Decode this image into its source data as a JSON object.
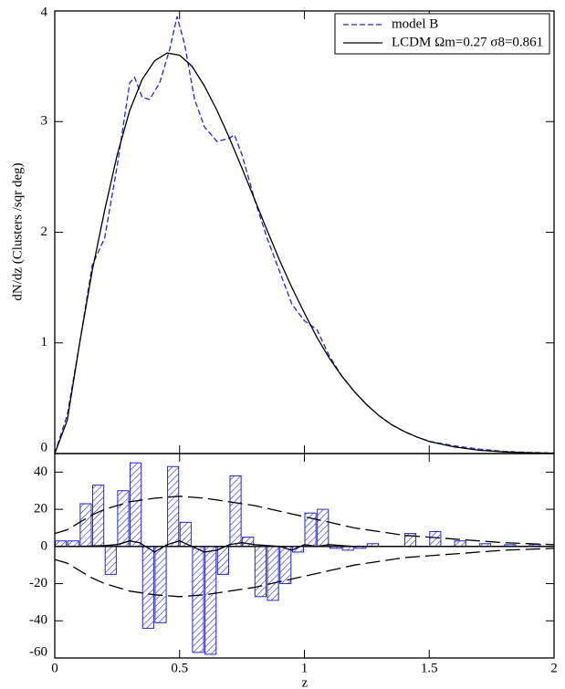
{
  "chart_data": [
    {
      "type": "line",
      "ylabel": "dN/dz (Clusters /sqr deg)",
      "xlim": [
        0,
        2
      ],
      "xticks": [
        0,
        0.5,
        1,
        1.5,
        2
      ],
      "ylim": [
        0,
        4
      ],
      "yticks": [
        0,
        1,
        2,
        3,
        4
      ],
      "legend": "upper right",
      "series": [
        {
          "name": "model B",
          "color": "#2626d0",
          "dash": true,
          "x": [
            0,
            0.05,
            0.1,
            0.15,
            0.2,
            0.25,
            0.3,
            0.32,
            0.35,
            0.38,
            0.42,
            0.46,
            0.49,
            0.52,
            0.56,
            0.6,
            0.65,
            0.7,
            0.72,
            0.75,
            0.8,
            0.85,
            0.9,
            0.95,
            1.0,
            1.05,
            1.1,
            1.15,
            1.2,
            1.25,
            1.3,
            1.35,
            1.4,
            1.45,
            1.5,
            1.6,
            1.7,
            1.8,
            1.9,
            2.0
          ],
          "values": [
            0,
            0.35,
            1.0,
            1.7,
            1.95,
            2.6,
            3.35,
            3.4,
            3.22,
            3.2,
            3.35,
            3.65,
            3.95,
            3.7,
            3.2,
            2.95,
            2.82,
            2.85,
            2.88,
            2.7,
            2.3,
            1.95,
            1.65,
            1.35,
            1.2,
            1.12,
            0.88,
            0.7,
            0.56,
            0.44,
            0.34,
            0.26,
            0.2,
            0.15,
            0.11,
            0.07,
            0.04,
            0.02,
            0.01,
            0.005
          ]
        },
        {
          "name": "LCDM Ωm=0.27 σ8=0.861",
          "color": "#000000",
          "dash": false,
          "x": [
            0,
            0.05,
            0.1,
            0.15,
            0.2,
            0.25,
            0.3,
            0.35,
            0.4,
            0.45,
            0.5,
            0.55,
            0.6,
            0.65,
            0.7,
            0.75,
            0.8,
            0.85,
            0.9,
            0.95,
            1.0,
            1.05,
            1.1,
            1.15,
            1.2,
            1.25,
            1.3,
            1.35,
            1.4,
            1.45,
            1.5,
            1.6,
            1.7,
            1.8,
            1.9,
            2.0
          ],
          "values": [
            0,
            0.3,
            1.0,
            1.65,
            2.2,
            2.7,
            3.1,
            3.38,
            3.55,
            3.62,
            3.6,
            3.5,
            3.32,
            3.1,
            2.85,
            2.58,
            2.3,
            2.02,
            1.75,
            1.5,
            1.27,
            1.05,
            0.86,
            0.7,
            0.56,
            0.44,
            0.34,
            0.26,
            0.2,
            0.15,
            0.11,
            0.06,
            0.03,
            0.015,
            0.007,
            0.003
          ]
        }
      ]
    },
    {
      "type": "histogram",
      "xlabel": "z",
      "xlim": [
        0,
        2
      ],
      "xticks": [
        0,
        0.5,
        1,
        1.5,
        2
      ],
      "ylim": [
        -60,
        50
      ],
      "yticks": [
        -60,
        -40,
        -20,
        0,
        20,
        40
      ],
      "color": "#2626d0",
      "bins": [
        0,
        0.05,
        0.1,
        0.15,
        0.2,
        0.25,
        0.3,
        0.35,
        0.4,
        0.45,
        0.5,
        0.55,
        0.6,
        0.65,
        0.7,
        0.75,
        0.8,
        0.85,
        0.9,
        0.95,
        1.0,
        1.05,
        1.1,
        1.15,
        1.2,
        1.25,
        1.3,
        1.35,
        1.4,
        1.45,
        1.5,
        1.55,
        1.6,
        1.65,
        1.7,
        1.75,
        1.8,
        1.85,
        1.9,
        1.95,
        2.0
      ],
      "counts": [
        3,
        3,
        23,
        33,
        -15,
        30,
        45,
        -44,
        -41,
        43,
        13,
        -57,
        -58,
        -15,
        38,
        5,
        -27,
        -29,
        -20,
        -3,
        18,
        20,
        -1,
        -2,
        -1,
        1.5,
        0,
        0,
        7,
        0,
        8,
        0,
        3,
        0,
        1.5,
        0,
        1,
        0,
        1,
        0
      ],
      "lines": [
        {
          "color": "#000000",
          "dash": true,
          "x": [
            0,
            0.05,
            0.1,
            0.15,
            0.2,
            0.3,
            0.4,
            0.5,
            0.6,
            0.7,
            0.8,
            0.9,
            1.0,
            1.1,
            1.2,
            1.3,
            1.4,
            1.5,
            1.6,
            1.7,
            1.8,
            1.9,
            2.0
          ],
          "values": [
            7,
            9,
            13,
            17,
            20,
            24,
            26,
            27,
            26,
            24,
            22,
            19,
            16,
            13,
            10,
            8,
            6,
            5,
            4,
            3,
            2,
            1.5,
            1
          ]
        },
        {
          "color": "#000000",
          "dash": true,
          "x": [
            0,
            0.05,
            0.1,
            0.15,
            0.2,
            0.3,
            0.4,
            0.5,
            0.6,
            0.7,
            0.8,
            0.9,
            1.0,
            1.1,
            1.2,
            1.3,
            1.4,
            1.5,
            1.6,
            1.7,
            1.8,
            1.9,
            2.0
          ],
          "values": [
            -7,
            -9,
            -13,
            -17,
            -20,
            -24,
            -26,
            -27,
            -26,
            -24,
            -22,
            -19,
            -16,
            -13,
            -10,
            -8,
            -6,
            -5,
            -4,
            -3,
            -2,
            -1.5,
            -1
          ]
        },
        {
          "color": "#000000",
          "dash": false,
          "x": [
            0,
            0.1,
            0.2,
            0.25,
            0.3,
            0.34,
            0.4,
            0.45,
            0.5,
            0.55,
            0.6,
            0.65,
            0.7,
            0.75,
            0.8,
            0.9,
            0.95,
            1.0,
            1.05,
            1.1,
            1.2,
            2.0
          ],
          "values": [
            0,
            0,
            0.5,
            1,
            3,
            2,
            -3,
            1,
            3,
            0,
            -3,
            -2,
            1,
            2,
            1,
            0,
            -2,
            1,
            0,
            1,
            0,
            0
          ]
        }
      ]
    }
  ]
}
